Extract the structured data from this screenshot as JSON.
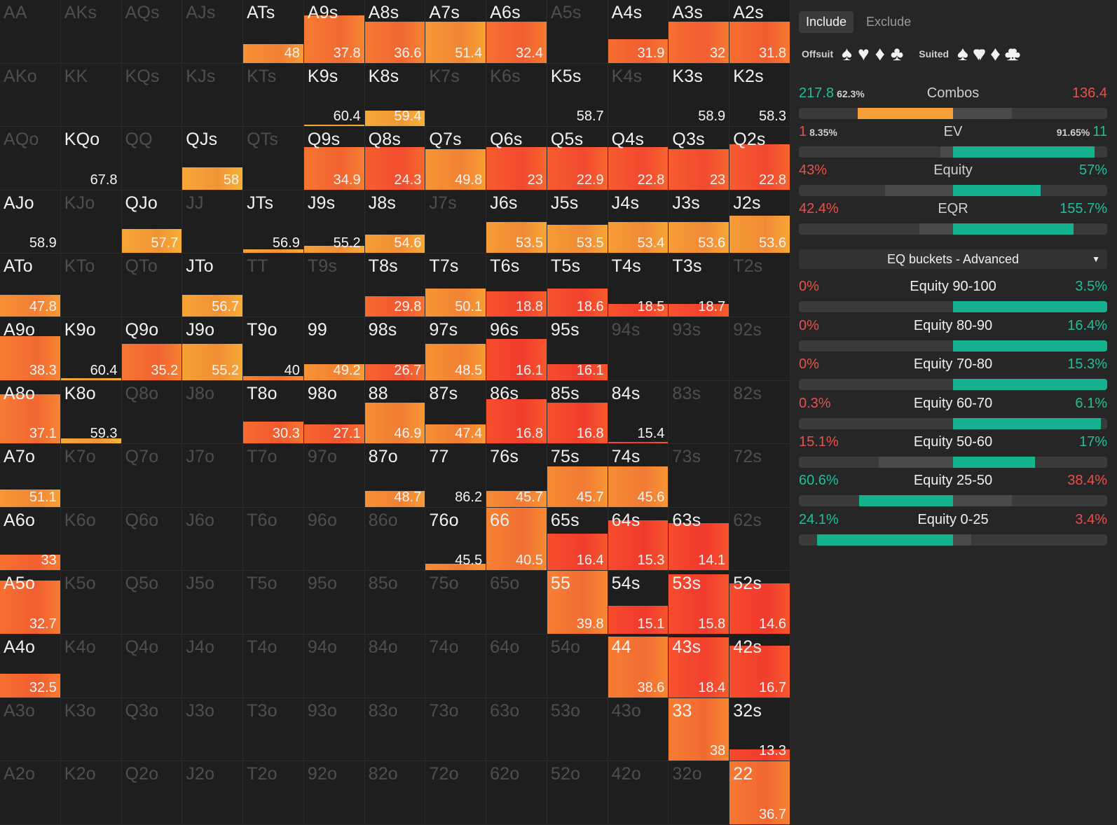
{
  "colors": {
    "orange": "#f79f37",
    "teal": "#14b28f",
    "red": "#e8504a",
    "green": "#1fbf9a"
  },
  "grid": {
    "rows": [
      [
        {
          "h": "AA"
        },
        {
          "h": "AKs"
        },
        {
          "h": "AQs"
        },
        {
          "h": "AJs"
        },
        {
          "h": "ATs",
          "v": "48",
          "f": 0.3
        },
        {
          "h": "A9s",
          "v": "37.8",
          "f": 0.75
        },
        {
          "h": "A8s",
          "v": "36.6",
          "f": 0.65
        },
        {
          "h": "A7s",
          "v": "51.4",
          "f": 0.65
        },
        {
          "h": "A6s",
          "v": "32.4",
          "f": 0.65
        },
        {
          "h": "A5s"
        },
        {
          "h": "A4s",
          "v": "31.9",
          "f": 0.38
        },
        {
          "h": "A3s",
          "v": "32",
          "f": 0.65
        },
        {
          "h": "A2s",
          "v": "31.8",
          "f": 0.65
        }
      ],
      [
        {
          "h": "AKo"
        },
        {
          "h": "KK"
        },
        {
          "h": "KQs"
        },
        {
          "h": "KJs"
        },
        {
          "h": "KTs"
        },
        {
          "h": "K9s",
          "v": "60.4",
          "f": 0.03
        },
        {
          "h": "K8s",
          "v": "59.4",
          "f": 0.25
        },
        {
          "h": "K7s"
        },
        {
          "h": "K6s"
        },
        {
          "h": "K5s",
          "v": "58.7",
          "f": 0
        },
        {
          "h": "K4s"
        },
        {
          "h": "K3s",
          "v": "58.9",
          "f": 0
        },
        {
          "h": "K2s",
          "v": "58.3",
          "f": 0
        }
      ],
      [
        {
          "h": "AQo"
        },
        {
          "h": "KQo",
          "v": "67.8",
          "f": 0
        },
        {
          "h": "QQ"
        },
        {
          "h": "QJs",
          "v": "58",
          "f": 0.35
        },
        {
          "h": "QTs"
        },
        {
          "h": "Q9s",
          "v": "34.9",
          "f": 0.68
        },
        {
          "h": "Q8s",
          "v": "24.3",
          "f": 0.68
        },
        {
          "h": "Q7s",
          "v": "49.8",
          "f": 0.65
        },
        {
          "h": "Q6s",
          "v": "23",
          "f": 0.68
        },
        {
          "h": "Q5s",
          "v": "22.9",
          "f": 0.68
        },
        {
          "h": "Q4s",
          "v": "22.8",
          "f": 0.68
        },
        {
          "h": "Q3s",
          "v": "23",
          "f": 0.65
        },
        {
          "h": "Q2s",
          "v": "22.8",
          "f": 0.72
        }
      ],
      [
        {
          "h": "AJo",
          "v": "58.9",
          "f": 0
        },
        {
          "h": "KJo"
        },
        {
          "h": "QJo",
          "v": "57.7",
          "f": 0.38
        },
        {
          "h": "JJ"
        },
        {
          "h": "JTs",
          "v": "56.9",
          "f": 0.06
        },
        {
          "h": "J9s",
          "v": "55.2",
          "f": 0.12
        },
        {
          "h": "J8s",
          "v": "54.6",
          "f": 0.3
        },
        {
          "h": "J7s"
        },
        {
          "h": "J6s",
          "v": "53.5",
          "f": 0.5
        },
        {
          "h": "J5s",
          "v": "53.5",
          "f": 0.45
        },
        {
          "h": "J4s",
          "v": "53.4",
          "f": 0.5
        },
        {
          "h": "J3s",
          "v": "53.6",
          "f": 0.5
        },
        {
          "h": "J2s",
          "v": "53.6",
          "f": 0.6
        }
      ],
      [
        {
          "h": "ATo",
          "v": "47.8",
          "f": 0.35
        },
        {
          "h": "KTo"
        },
        {
          "h": "QTo"
        },
        {
          "h": "JTo",
          "v": "56.7",
          "f": 0.35
        },
        {
          "h": "TT"
        },
        {
          "h": "T9s"
        },
        {
          "h": "T8s",
          "v": "29.8",
          "f": 0.32
        },
        {
          "h": "T7s",
          "v": "50.1",
          "f": 0.45
        },
        {
          "h": "T6s",
          "v": "18.8",
          "f": 0.4
        },
        {
          "h": "T5s",
          "v": "18.6",
          "f": 0.45
        },
        {
          "h": "T4s",
          "v": "18.5",
          "f": 0.2
        },
        {
          "h": "T3s",
          "v": "18.7",
          "f": 0.2
        },
        {
          "h": "T2s"
        }
      ],
      [
        {
          "h": "A9o",
          "v": "38.3",
          "f": 0.7
        },
        {
          "h": "K9o",
          "v": "60.4",
          "f": 0.03
        },
        {
          "h": "Q9o",
          "v": "35.2",
          "f": 0.58
        },
        {
          "h": "J9o",
          "v": "55.2",
          "f": 0.58
        },
        {
          "h": "T9o",
          "v": "40",
          "f": 0.06
        },
        {
          "h": "99",
          "v": "49.2",
          "f": 0.25
        },
        {
          "h": "98s",
          "v": "26.7",
          "f": 0.25
        },
        {
          "h": "97s",
          "v": "48.5",
          "f": 0.58
        },
        {
          "h": "96s",
          "v": "16.1",
          "f": 0.65
        },
        {
          "h": "95s",
          "v": "16.1",
          "f": 0.25
        },
        {
          "h": "94s"
        },
        {
          "h": "93s"
        },
        {
          "h": "92s"
        }
      ],
      [
        {
          "h": "A8o",
          "v": "37.1",
          "f": 0.78
        },
        {
          "h": "K8o",
          "v": "59.3",
          "f": 0.08
        },
        {
          "h": "Q8o"
        },
        {
          "h": "J8o"
        },
        {
          "h": "T8o",
          "v": "30.3",
          "f": 0.35
        },
        {
          "h": "98o",
          "v": "27.1",
          "f": 0.3
        },
        {
          "h": "88",
          "v": "46.9",
          "f": 0.65
        },
        {
          "h": "87s",
          "v": "47.4",
          "f": 0.3
        },
        {
          "h": "86s",
          "v": "16.8",
          "f": 0.7
        },
        {
          "h": "85s",
          "v": "16.8",
          "f": 0.65
        },
        {
          "h": "84s",
          "v": "15.4",
          "f": 0.02
        },
        {
          "h": "83s"
        },
        {
          "h": "82s"
        }
      ],
      [
        {
          "h": "A7o",
          "v": "51.1",
          "f": 0.28
        },
        {
          "h": "K7o"
        },
        {
          "h": "Q7o"
        },
        {
          "h": "J7o"
        },
        {
          "h": "T7o"
        },
        {
          "h": "97o"
        },
        {
          "h": "87o",
          "v": "48.7",
          "f": 0.25
        },
        {
          "h": "77",
          "v": "86.2",
          "f": 0
        },
        {
          "h": "76s",
          "v": "45.7",
          "f": 0.25
        },
        {
          "h": "75s",
          "v": "45.7",
          "f": 0.65
        },
        {
          "h": "74s",
          "v": "45.6",
          "f": 0.65
        },
        {
          "h": "73s"
        },
        {
          "h": "72s"
        }
      ],
      [
        {
          "h": "A6o",
          "v": "33",
          "f": 0.25
        },
        {
          "h": "K6o"
        },
        {
          "h": "Q6o"
        },
        {
          "h": "J6o"
        },
        {
          "h": "T6o"
        },
        {
          "h": "96o"
        },
        {
          "h": "86o"
        },
        {
          "h": "76o",
          "v": "45.5",
          "f": 0.1
        },
        {
          "h": "66",
          "v": "40.5",
          "f": 1
        },
        {
          "h": "65s",
          "v": "16.4",
          "f": 0.58
        },
        {
          "h": "64s",
          "v": "15.3",
          "f": 0.8
        },
        {
          "h": "63s",
          "v": "14.1",
          "f": 0.75
        },
        {
          "h": "62s"
        }
      ],
      [
        {
          "h": "A5o",
          "v": "32.7",
          "f": 0.85
        },
        {
          "h": "K5o"
        },
        {
          "h": "Q5o"
        },
        {
          "h": "J5o"
        },
        {
          "h": "T5o"
        },
        {
          "h": "95o"
        },
        {
          "h": "85o"
        },
        {
          "h": "75o"
        },
        {
          "h": "65o"
        },
        {
          "h": "55",
          "v": "39.8",
          "f": 1
        },
        {
          "h": "54s",
          "v": "15.1",
          "f": 0.45
        },
        {
          "h": "53s",
          "v": "15.8",
          "f": 0.95
        },
        {
          "h": "52s",
          "v": "14.6",
          "f": 0.8
        }
      ],
      [
        {
          "h": "A4o",
          "v": "32.5",
          "f": 0.38
        },
        {
          "h": "K4o"
        },
        {
          "h": "Q4o"
        },
        {
          "h": "J4o"
        },
        {
          "h": "T4o"
        },
        {
          "h": "94o"
        },
        {
          "h": "84o"
        },
        {
          "h": "74o"
        },
        {
          "h": "64o"
        },
        {
          "h": "54o"
        },
        {
          "h": "44",
          "v": "38.6",
          "f": 0.97
        },
        {
          "h": "43s",
          "v": "18.4",
          "f": 0.95
        },
        {
          "h": "42s",
          "v": "16.7",
          "f": 0.82
        }
      ],
      [
        {
          "h": "A3o"
        },
        {
          "h": "K3o"
        },
        {
          "h": "Q3o"
        },
        {
          "h": "J3o"
        },
        {
          "h": "T3o"
        },
        {
          "h": "93o"
        },
        {
          "h": "83o"
        },
        {
          "h": "73o"
        },
        {
          "h": "63o"
        },
        {
          "h": "53o"
        },
        {
          "h": "43o"
        },
        {
          "h": "33",
          "v": "38",
          "f": 1
        },
        {
          "h": "32s",
          "v": "13.3",
          "f": 0.18
        }
      ],
      [
        {
          "h": "A2o"
        },
        {
          "h": "K2o"
        },
        {
          "h": "Q2o"
        },
        {
          "h": "J2o"
        },
        {
          "h": "T2o"
        },
        {
          "h": "92o"
        },
        {
          "h": "82o"
        },
        {
          "h": "72o"
        },
        {
          "h": "62o"
        },
        {
          "h": "52o"
        },
        {
          "h": "42o"
        },
        {
          "h": "32o"
        },
        {
          "h": "22",
          "v": "36.7",
          "f": 1
        }
      ]
    ]
  },
  "panel": {
    "tabs": [
      "Include",
      "Exclude"
    ],
    "offsuit_label": "Offsuit",
    "suited_label": "Suited",
    "suits": [
      "♠",
      "♥",
      "♦",
      "♣"
    ],
    "stats": [
      {
        "name": "Combos",
        "left": "217.8",
        "left_small": "62.3%",
        "right": "136.4",
        "right_small": "",
        "left_share": 0.62,
        "left_color": "orange"
      },
      {
        "name": "EV",
        "left": "1",
        "left_small": "8.35%",
        "right": "11",
        "right_small": "91.65%",
        "left_share": 0.08,
        "right_share": 0.92
      },
      {
        "name": "Equity",
        "left": "43%",
        "left_small": "",
        "right": "57%",
        "right_small": "",
        "left_share": 0,
        "right_share": 0.57
      },
      {
        "name": "EQR",
        "left": "42.4%",
        "left_small": "",
        "right": "155.7%",
        "right_small": "",
        "left_share": 0,
        "right_share": 0.78
      }
    ],
    "dropdown": "EQ buckets - Advanced",
    "buckets": [
      {
        "name": "Equity 90-100",
        "left": "0%",
        "right": "3.5%",
        "left_color": "red",
        "right_color": "green",
        "left_share": 0,
        "right_share": 1.0
      },
      {
        "name": "Equity 80-90",
        "left": "0%",
        "right": "16.4%",
        "left_color": "red",
        "right_color": "green",
        "left_share": 0,
        "right_share": 1.0
      },
      {
        "name": "Equity 70-80",
        "left": "0%",
        "right": "15.3%",
        "left_color": "red",
        "right_color": "green",
        "left_share": 0,
        "right_share": 1.0
      },
      {
        "name": "Equity 60-70",
        "left": "0.3%",
        "right": "6.1%",
        "left_color": "red",
        "right_color": "green",
        "left_share": 0,
        "right_share": 0.96
      },
      {
        "name": "Equity 50-60",
        "left": "15.1%",
        "right": "17%",
        "left_color": "red",
        "right_color": "green",
        "left_share": 0,
        "right_share": 0.53
      },
      {
        "name": "Equity 25-50",
        "left": "60.6%",
        "right": "38.4%",
        "left_color": "green",
        "right_color": "red",
        "left_share": 0.61,
        "right_share": 0
      },
      {
        "name": "Equity 0-25",
        "left": "24.1%",
        "right": "3.4%",
        "left_color": "green",
        "right_color": "red",
        "left_share": 0.88,
        "right_share": 0
      }
    ]
  }
}
